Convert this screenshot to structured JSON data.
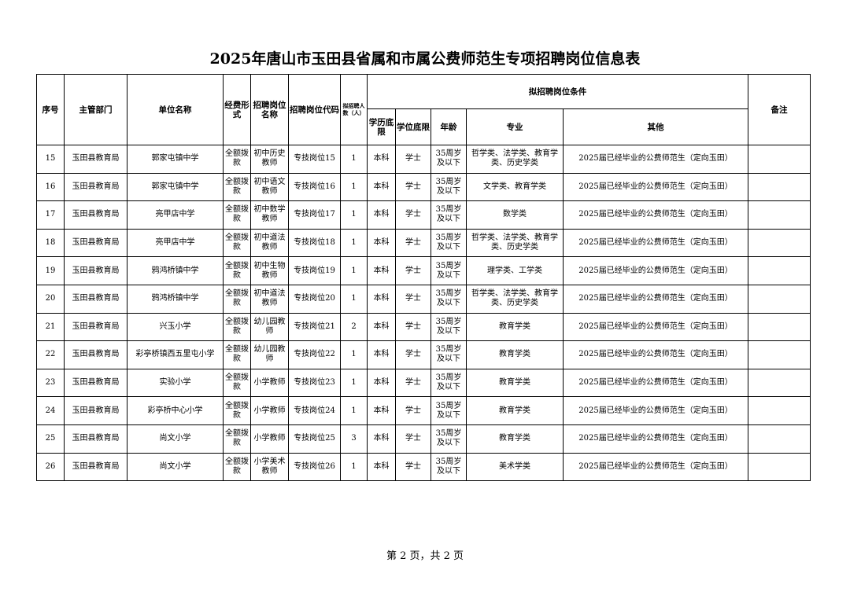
{
  "title": "2025年唐山市玉田县省属和市属公费师范生专项招聘岗位信息表",
  "headers": {
    "seq": "序号",
    "dept": "主管部门",
    "unit": "单位名称",
    "fund": "经费形式",
    "post_name": "招聘岗位名称",
    "post_code": "招聘岗位代码",
    "count": "拟招聘人数（人）",
    "conditions": "拟招聘岗位条件",
    "edu": "学历底限",
    "degree": "学位底限",
    "age": "年龄",
    "major": "专业",
    "other": "其他",
    "remark": "备注"
  },
  "rows": [
    {
      "seq": "15",
      "dept": "玉田县教育局",
      "unit": "郭家屯镇中学",
      "fund": "全额拨款",
      "post_name": "初中历史教师",
      "post_code": "专技岗位15",
      "count": "1",
      "edu": "本科",
      "degree": "学士",
      "age": "35周岁及以下",
      "major": "哲学类、法学类、教育学类、历史学类",
      "other": "2025届已经毕业的公费师范生（定向玉田）",
      "remark": ""
    },
    {
      "seq": "16",
      "dept": "玉田县教育局",
      "unit": "郭家屯镇中学",
      "fund": "全额拨款",
      "post_name": "初中语文教师",
      "post_code": "专技岗位16",
      "count": "1",
      "edu": "本科",
      "degree": "学士",
      "age": "35周岁及以下",
      "major": "文学类、教育学类",
      "other": "2025届已经毕业的公费师范生（定向玉田）",
      "remark": ""
    },
    {
      "seq": "17",
      "dept": "玉田县教育局",
      "unit": "亮甲店中学",
      "fund": "全额拨款",
      "post_name": "初中数学教师",
      "post_code": "专技岗位17",
      "count": "1",
      "edu": "本科",
      "degree": "学士",
      "age": "35周岁及以下",
      "major": "数学类",
      "other": "2025届已经毕业的公费师范生（定向玉田）",
      "remark": ""
    },
    {
      "seq": "18",
      "dept": "玉田县教育局",
      "unit": "亮甲店中学",
      "fund": "全额拨款",
      "post_name": "初中道法教师",
      "post_code": "专技岗位18",
      "count": "1",
      "edu": "本科",
      "degree": "学士",
      "age": "35周岁及以下",
      "major": "哲学类、法学类、教育学类、历史学类",
      "other": "2025届已经毕业的公费师范生（定向玉田）",
      "remark": ""
    },
    {
      "seq": "19",
      "dept": "玉田县教育局",
      "unit": "鸦鸿桥镇中学",
      "fund": "全额拨款",
      "post_name": "初中生物教师",
      "post_code": "专技岗位19",
      "count": "1",
      "edu": "本科",
      "degree": "学士",
      "age": "35周岁及以下",
      "major": "理学类、工学类",
      "other": "2025届已经毕业的公费师范生（定向玉田）",
      "remark": ""
    },
    {
      "seq": "20",
      "dept": "玉田县教育局",
      "unit": "鸦鸿桥镇中学",
      "fund": "全额拨款",
      "post_name": "初中道法教师",
      "post_code": "专技岗位20",
      "count": "1",
      "edu": "本科",
      "degree": "学士",
      "age": "35周岁及以下",
      "major": "哲学类、法学类、教育学类、历史学类",
      "other": "2025届已经毕业的公费师范生（定向玉田）",
      "remark": ""
    },
    {
      "seq": "21",
      "dept": "玉田县教育局",
      "unit": "兴玉小学",
      "fund": "全额拨款",
      "post_name": "幼儿园教师",
      "post_code": "专技岗位21",
      "count": "2",
      "edu": "本科",
      "degree": "学士",
      "age": "35周岁及以下",
      "major": "教育学类",
      "other": "2025届已经毕业的公费师范生（定向玉田）",
      "remark": ""
    },
    {
      "seq": "22",
      "dept": "玉田县教育局",
      "unit": "彩亭桥镇西五里屯小学",
      "fund": "全额拨款",
      "post_name": "幼儿园教师",
      "post_code": "专技岗位22",
      "count": "1",
      "edu": "本科",
      "degree": "学士",
      "age": "35周岁及以下",
      "major": "教育学类",
      "other": "2025届已经毕业的公费师范生（定向玉田）",
      "remark": ""
    },
    {
      "seq": "23",
      "dept": "玉田县教育局",
      "unit": "实验小学",
      "fund": "全额拨款",
      "post_name": "小学教师",
      "post_code": "专技岗位23",
      "count": "1",
      "edu": "本科",
      "degree": "学士",
      "age": "35周岁及以下",
      "major": "教育学类",
      "other": "2025届已经毕业的公费师范生（定向玉田）",
      "remark": ""
    },
    {
      "seq": "24",
      "dept": "玉田县教育局",
      "unit": "彩亭桥中心小学",
      "fund": "全额拨款",
      "post_name": "小学教师",
      "post_code": "专技岗位24",
      "count": "1",
      "edu": "本科",
      "degree": "学士",
      "age": "35周岁及以下",
      "major": "教育学类",
      "other": "2025届已经毕业的公费师范生（定向玉田）",
      "remark": ""
    },
    {
      "seq": "25",
      "dept": "玉田县教育局",
      "unit": "尚文小学",
      "fund": "全额拨款",
      "post_name": "小学教师",
      "post_code": "专技岗位25",
      "count": "3",
      "edu": "本科",
      "degree": "学士",
      "age": "35周岁及以下",
      "major": "教育学类",
      "other": "2025届已经毕业的公费师范生（定向玉田）",
      "remark": ""
    },
    {
      "seq": "26",
      "dept": "玉田县教育局",
      "unit": "尚文小学",
      "fund": "全额拨款",
      "post_name": "小学美术教师",
      "post_code": "专技岗位26",
      "count": "1",
      "edu": "本科",
      "degree": "学士",
      "age": "35周岁及以下",
      "major": "美术学类",
      "other": "2025届已经毕业的公费师范生（定向玉田）",
      "remark": ""
    }
  ],
  "footer": "第 2 页，共 2 页"
}
